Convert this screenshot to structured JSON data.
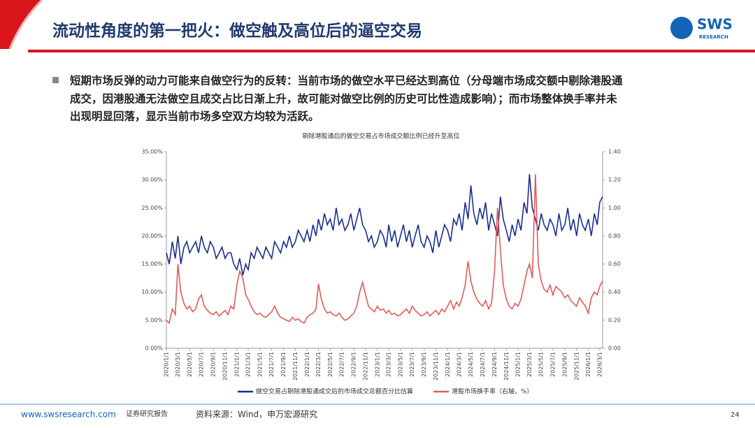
{
  "header": {
    "title": "流动性角度的第一把火：做空触及高位后的逼空交易",
    "logo": "SWS",
    "logo_sub": "RESEARCH"
  },
  "bullet": [
    "短期市场反弹的动力可能来自做空行为的反转：当前市场的做空水平已经达到高位（分母端市场成交额中剔除港股通",
    "成交，因港股通无法做空且成交占比日渐上升，故可能对做空比例的历史可比性造成影响）；而市场整体换手率并未",
    "出现明显回落，显示当前市场多空双方均较为活跃。"
  ],
  "chart_data": {
    "type": "line",
    "title": "剔除港股通后的做空交易占市场成交额比例已经升至高位",
    "x": [
      "2020/1/1",
      "2020/1/16",
      "2020/2/1",
      "2020/2/16",
      "2020/3/1",
      "2020/3/16",
      "2020/4/1",
      "2020/4/16",
      "2020/5/1",
      "2020/5/16",
      "2020/6/1",
      "2020/6/16",
      "2020/7/1",
      "2020/7/16",
      "2020/8/1",
      "2020/8/16",
      "2020/9/1",
      "2020/9/16",
      "2020/10/1",
      "2020/10/16",
      "2020/11/1",
      "2020/11/16",
      "2020/12/1",
      "2020/12/16",
      "2021/1/1",
      "2021/1/16",
      "2021/2/1",
      "2021/2/16",
      "2021/3/1",
      "2021/3/16",
      "2021/4/1",
      "2021/4/16",
      "2021/5/1",
      "2021/5/16",
      "2021/6/1",
      "2021/6/16",
      "2021/7/1",
      "2021/7/16",
      "2021/8/1",
      "2021/8/16",
      "2021/9/1",
      "2021/9/16",
      "2021/10/1",
      "2021/10/16",
      "2021/11/1",
      "2021/11/16",
      "2021/12/1",
      "2021/12/16",
      "2022/1/1",
      "2022/1/16",
      "2022/2/1",
      "2022/2/16",
      "2022/3/1",
      "2022/3/16",
      "2022/4/1",
      "2022/4/16",
      "2022/5/1",
      "2022/5/16",
      "2022/6/1",
      "2022/6/16",
      "2022/7/1",
      "2022/7/16",
      "2022/8/1",
      "2022/8/16",
      "2022/9/1",
      "2022/9/16",
      "2022/10/1",
      "2022/10/16",
      "2022/11/1",
      "2022/11/16",
      "2022/12/1",
      "2022/12/16",
      "2023/1/1",
      "2023/1/16",
      "2023/2/1",
      "2023/2/16",
      "2023/3/1",
      "2023/3/16",
      "2023/4/1",
      "2023/4/16",
      "2023/5/1",
      "2023/5/16",
      "2023/6/1",
      "2023/6/16",
      "2023/7/1",
      "2023/7/16",
      "2023/8/1",
      "2023/8/16",
      "2023/9/1",
      "2023/9/16",
      "2023/10/1",
      "2023/10/16",
      "2023/11/1",
      "2023/11/16",
      "2023/12/1",
      "2023/12/16",
      "2024/1/1",
      "2024/1/16",
      "2024/2/1",
      "2024/2/16",
      "2024/3/1",
      "2024/3/16",
      "2024/4/1",
      "2024/4/16",
      "2024/5/1",
      "2024/5/16",
      "2024/6/1",
      "2024/6/16",
      "2024/7/1",
      "2024/7/16",
      "2024/8/1",
      "2024/8/16",
      "2024/9/1",
      "2024/9/16",
      "2024/10/1",
      "2024/10/16",
      "2024/11/1",
      "2024/11/16",
      "2024/12/1",
      "2024/12/16",
      "2025/1/1",
      "2025/1/16",
      "2025/2/1",
      "2025/2/16",
      "2025/3/1",
      "2025/3/16",
      "2025/4/1",
      "2025/4/16",
      "2025/5/1",
      "2025/5/16",
      "2025/6/1",
      "2025/6/16",
      "2025/7/1",
      "2025/7/16",
      "2025/8/1",
      "2025/8/16",
      "2025/9/1",
      "2025/9/16",
      "2025/10/1",
      "2025/10/16",
      "2025/11/1",
      "2025/11/16",
      "2025/12/1",
      "2025/12/16",
      "2026/1/1",
      "2026/1/16",
      "2026/2/1",
      "2026/2/16",
      "2026/3/1",
      "2026/3/16"
    ],
    "series": [
      {
        "name": "做空交易占剔除港股通成交后的市场成交总额百分比估算",
        "color": "#1a2e8c",
        "axis": "y",
        "values": [
          17,
          15,
          19,
          16,
          20,
          15,
          18,
          19,
          17,
          18,
          19,
          17,
          20,
          18,
          17,
          19,
          18,
          16,
          17,
          18,
          16,
          17,
          17,
          15,
          14,
          16,
          13,
          15,
          14,
          17,
          16,
          18,
          17,
          16,
          18,
          17,
          16,
          19,
          18,
          17,
          19,
          18,
          20,
          18,
          19,
          21,
          20,
          19,
          21,
          19,
          22,
          20,
          23,
          21,
          24,
          22,
          23,
          21,
          25,
          22,
          23,
          21,
          22,
          24,
          21,
          23,
          25,
          22,
          21,
          19,
          20,
          18,
          19,
          21,
          20,
          18,
          22,
          19,
          21,
          18,
          20,
          22,
          19,
          21,
          18,
          20,
          22,
          19,
          18,
          20,
          19,
          17,
          21,
          18,
          20,
          22,
          21,
          19,
          23,
          22,
          24,
          21,
          26,
          23,
          29,
          24,
          22,
          25,
          23,
          26,
          21,
          24,
          22,
          20,
          27,
          23,
          21,
          19,
          22,
          20,
          23,
          21,
          26,
          24,
          31,
          25,
          23,
          21,
          24,
          22,
          21,
          23,
          22,
          20,
          24,
          21,
          22,
          25,
          21,
          23,
          20,
          24,
          22,
          21,
          23,
          20,
          24,
          22,
          26,
          27
        ]
      },
      {
        "name": "港股市场换手率（右轴，%）",
        "color": "#e05a5a",
        "axis": "y2",
        "values": [
          0.2,
          0.18,
          0.28,
          0.24,
          0.6,
          0.4,
          0.32,
          0.28,
          0.3,
          0.26,
          0.28,
          0.35,
          0.38,
          0.3,
          0.27,
          0.25,
          0.24,
          0.26,
          0.23,
          0.25,
          0.27,
          0.24,
          0.3,
          0.28,
          0.45,
          0.55,
          0.5,
          0.38,
          0.35,
          0.3,
          0.26,
          0.24,
          0.25,
          0.23,
          0.22,
          0.24,
          0.26,
          0.3,
          0.25,
          0.22,
          0.21,
          0.2,
          0.19,
          0.22,
          0.2,
          0.21,
          0.19,
          0.18,
          0.22,
          0.24,
          0.25,
          0.28,
          0.46,
          0.35,
          0.28,
          0.25,
          0.26,
          0.24,
          0.23,
          0.25,
          0.22,
          0.2,
          0.21,
          0.23,
          0.25,
          0.3,
          0.4,
          0.47,
          0.38,
          0.3,
          0.28,
          0.26,
          0.3,
          0.27,
          0.28,
          0.25,
          0.27,
          0.24,
          0.25,
          0.23,
          0.24,
          0.26,
          0.28,
          0.25,
          0.3,
          0.27,
          0.25,
          0.23,
          0.24,
          0.26,
          0.23,
          0.25,
          0.27,
          0.24,
          0.28,
          0.26,
          0.3,
          0.34,
          0.28,
          0.33,
          0.3,
          0.36,
          0.45,
          0.62,
          0.48,
          0.4,
          0.35,
          0.32,
          0.3,
          0.34,
          0.28,
          0.32,
          0.55,
          1.0,
          0.7,
          0.45,
          0.35,
          0.3,
          0.28,
          0.32,
          0.3,
          0.35,
          0.45,
          0.55,
          0.6,
          0.5,
          1.24,
          0.6,
          0.48,
          0.42,
          0.4,
          0.45,
          0.38,
          0.44,
          0.42,
          0.4,
          0.36,
          0.38,
          0.34,
          0.32,
          0.3,
          0.36,
          0.33,
          0.3,
          0.25,
          0.36,
          0.4,
          0.38,
          0.44,
          0.48
        ]
      }
    ],
    "xlim": [
      "2020/1/1",
      "2026/3/16"
    ],
    "xticks": [
      "2020/1/1",
      "2020/3/1",
      "2020/5/1",
      "2020/7/1",
      "2020/9/1",
      "2020/11/1",
      "2021/1/1",
      "2021/3/1",
      "2021/5/1",
      "2021/7/1",
      "2021/9/1",
      "2021/11/1",
      "2022/1/1",
      "2022/3/1",
      "2022/5/1",
      "2022/7/1",
      "2022/9/1",
      "2022/11/1",
      "2023/1/1",
      "2023/3/1",
      "2023/5/1",
      "2023/7/1",
      "2023/9/1",
      "2023/11/1",
      "2024/1/1",
      "2024/3/1",
      "2024/5/1",
      "2024/7/1",
      "2024/9/1",
      "2024/11/1",
      "2025/1/1",
      "2025/3/1",
      "2025/5/1",
      "2025/7/1",
      "2025/9/1",
      "2025/11/1",
      "2026/1/1",
      "2026/3/1"
    ],
    "ylim": [
      0,
      35
    ],
    "yticks": [
      {
        "value": 0,
        "label": "0.00%"
      },
      {
        "value": 5,
        "label": "5.00%"
      },
      {
        "value": 10,
        "label": "10.00%"
      },
      {
        "value": 15,
        "label": "15.00%"
      },
      {
        "value": 20,
        "label": "20.00%"
      },
      {
        "value": 25,
        "label": "25.00%"
      },
      {
        "value": 30,
        "label": "30.00%"
      },
      {
        "value": 35,
        "label": "35.00%"
      }
    ],
    "y2lim": [
      0,
      1.4
    ],
    "y2ticks": [
      {
        "value": 0,
        "label": "0.00"
      },
      {
        "value": 0.2,
        "label": "0.20"
      },
      {
        "value": 0.4,
        "label": "0.40"
      },
      {
        "value": 0.6,
        "label": "0.60"
      },
      {
        "value": 0.8,
        "label": "0.80"
      },
      {
        "value": 1,
        "label": "1.00"
      },
      {
        "value": 1.2,
        "label": "1.20"
      },
      {
        "value": 1.4,
        "label": "1.40"
      }
    ]
  },
  "footer": {
    "url": "www.swsresearch.com",
    "report": "证券研究报告",
    "source": "资料来源：Wind，申万宏源研究",
    "page": "24"
  }
}
